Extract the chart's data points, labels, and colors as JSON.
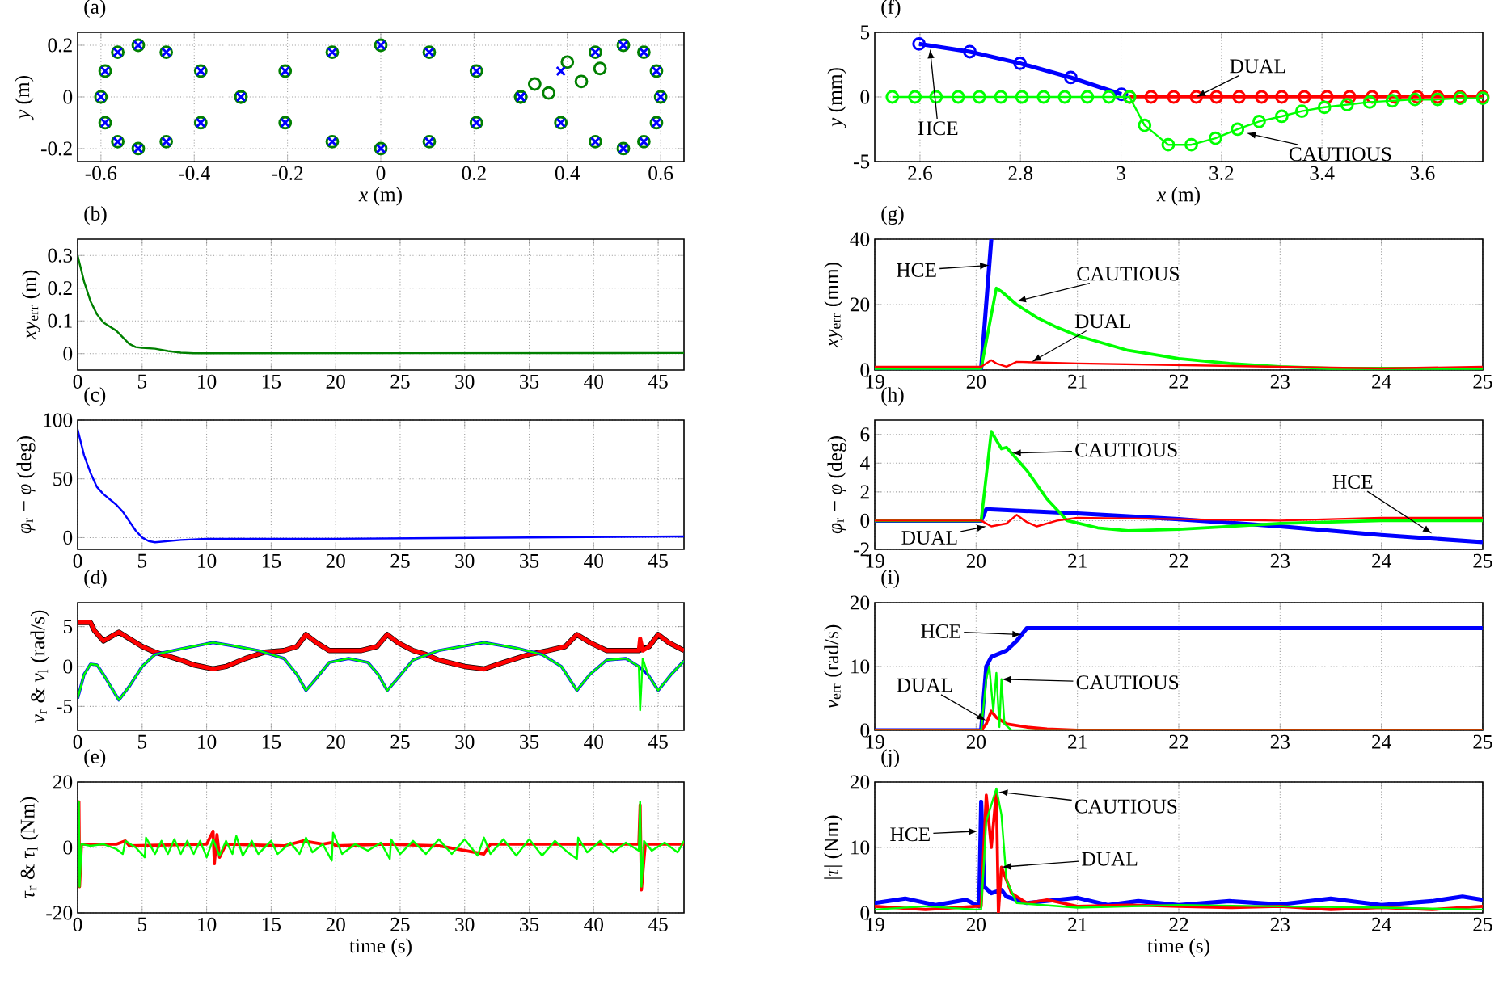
{
  "chart_data": [
    {
      "type": "scatter",
      "title": "(a)",
      "xlabel": "*x* (m)",
      "ylabel": "*y* (m)",
      "xlim": [
        -0.65,
        0.65
      ],
      "ylim": [
        -0.25,
        0.25
      ],
      "xticks": [
        -0.6,
        -0.4,
        -0.2,
        0,
        0.2,
        0.4,
        0.6
      ],
      "yticks": [
        -0.2,
        0,
        0.2
      ],
      "grid": true,
      "series": [
        {
          "color": "#008000",
          "marker": "circle",
          "x": [
            0,
            0.104,
            0.205,
            0.3,
            0.386,
            0.46,
            0.52,
            0.564,
            0.591,
            0.6,
            0.591,
            0.564,
            0.52,
            0.46,
            0.4,
            0.3,
            0.205,
            0.104,
            0,
            -0.104,
            -0.205,
            -0.3,
            -0.386,
            -0.46,
            -0.52,
            -0.564,
            -0.591,
            -0.6,
            -0.591,
            -0.564,
            -0.52,
            -0.46,
            -0.386,
            -0.3,
            -0.205,
            -0.104,
            0.33,
            0.36,
            0.43,
            0.47
          ],
          "values": [
            0.2,
            0.173,
            0.1,
            0,
            -0.1,
            -0.173,
            -0.2,
            -0.173,
            -0.1,
            0,
            0.1,
            0.173,
            0.2,
            0.173,
            0.135,
            0,
            -0.1,
            -0.173,
            -0.2,
            -0.173,
            -0.1,
            0,
            0.1,
            0.173,
            0.2,
            0.173,
            0.1,
            0,
            -0.1,
            -0.173,
            -0.2,
            -0.173,
            -0.1,
            0,
            0.1,
            0.173,
            0.05,
            0.015,
            0.06,
            0.11
          ]
        },
        {
          "color": "#0000ff",
          "marker": "cross",
          "x": [
            0,
            0.104,
            0.205,
            0.3,
            0.386,
            0.46,
            0.52,
            0.564,
            0.591,
            0.6,
            0.591,
            0.564,
            0.52,
            0.46,
            0.386,
            0.3,
            0.205,
            0.104,
            0,
            -0.104,
            -0.205,
            -0.3,
            -0.386,
            -0.46,
            -0.52,
            -0.564,
            -0.591,
            -0.6,
            -0.591,
            -0.564,
            -0.52,
            -0.46,
            -0.386,
            -0.3,
            -0.205,
            -0.104
          ],
          "values": [
            0.2,
            0.173,
            0.1,
            0,
            -0.1,
            -0.173,
            -0.2,
            -0.173,
            -0.1,
            0,
            0.1,
            0.173,
            0.2,
            0.173,
            0.1,
            0,
            -0.1,
            -0.173,
            -0.2,
            -0.173,
            -0.1,
            0,
            0.1,
            0.173,
            0.2,
            0.173,
            0.1,
            0,
            -0.1,
            -0.173,
            -0.2,
            -0.173,
            -0.1,
            0,
            0.1,
            0.173
          ]
        }
      ]
    },
    {
      "type": "line",
      "title": "(b)",
      "ylabel": "*xy*$_{err}$ (m)",
      "xlim": [
        0,
        47
      ],
      "ylim": [
        -0.05,
        0.35
      ],
      "xticks": [
        0,
        5,
        10,
        15,
        20,
        25,
        30,
        35,
        40,
        45
      ],
      "yticks": [
        0,
        0.1,
        0.2,
        0.3
      ],
      "grid": true,
      "series": [
        {
          "color": "#008000",
          "x": [
            0,
            0.5,
            1,
            1.5,
            2,
            3,
            4,
            4.5,
            5,
            6,
            7,
            8,
            9,
            10,
            47
          ],
          "values": [
            0.3,
            0.22,
            0.16,
            0.12,
            0.095,
            0.07,
            0.03,
            0.02,
            0.018,
            0.015,
            0.008,
            0.003,
            0.001,
            0.001,
            0.002
          ]
        }
      ]
    },
    {
      "type": "line",
      "title": "(c)",
      "ylabel": "*φ*$_{r}$ − *φ* (deg)",
      "xlim": [
        0,
        47
      ],
      "ylim": [
        -10,
        100
      ],
      "xticks": [
        0,
        5,
        10,
        15,
        20,
        25,
        30,
        35,
        40,
        45
      ],
      "yticks": [
        0,
        50,
        100
      ],
      "grid": true,
      "series": [
        {
          "color": "#0000ff",
          "x": [
            0,
            0.5,
            1,
            1.5,
            2,
            3,
            3.5,
            4,
            4.5,
            5,
            5.5,
            6,
            7,
            8,
            10,
            20,
            47
          ],
          "values": [
            92,
            70,
            55,
            43,
            37,
            28,
            22,
            14,
            6,
            0,
            -3,
            -4,
            -3,
            -2,
            -1,
            -1,
            1
          ]
        }
      ]
    },
    {
      "type": "line",
      "title": "(d)",
      "ylabel": "*ν*$_{r}$ & *ν*$_{l}$ (rad/s)",
      "xlim": [
        0,
        47
      ],
      "ylim": [
        -8,
        8
      ],
      "xticks": [
        0,
        5,
        10,
        15,
        20,
        25,
        30,
        35,
        40,
        45
      ],
      "yticks": [
        -5,
        0,
        5
      ],
      "grid": true,
      "series": [
        {
          "color": "#000000",
          "x": [
            0,
            1,
            1.3,
            2,
            3.2,
            4,
            5,
            6,
            7,
            8,
            9,
            10.5,
            11.5,
            13,
            14.5,
            16,
            17,
            17.7,
            18.5,
            19.5,
            22,
            23.2,
            24,
            24.8,
            26,
            27,
            28,
            30,
            31.5,
            33,
            35,
            36.5,
            37.8,
            38.7,
            39.7,
            41,
            43.5,
            44.3,
            45,
            45.8,
            47
          ],
          "values": [
            5.5,
            5.5,
            4.5,
            3.2,
            4.3,
            3.5,
            2.5,
            1.8,
            1.3,
            0.8,
            0.2,
            -0.3,
            0,
            1,
            1.8,
            2,
            2.5,
            4,
            3,
            2,
            2,
            2.5,
            4,
            3,
            2,
            1.5,
            0.8,
            0,
            -0.3,
            0.5,
            1.5,
            2,
            2.5,
            4,
            3,
            2,
            2,
            2.5,
            4,
            3,
            2
          ]
        },
        {
          "color": "#ff0000",
          "x": [
            0,
            1,
            1.3,
            2,
            3.2,
            4,
            5,
            6,
            7,
            8,
            9,
            10.5,
            11.5,
            13,
            14.5,
            16,
            17,
            17.7,
            18.5,
            19.5,
            22,
            23.2,
            24,
            24.8,
            26,
            27,
            28,
            30,
            31.5,
            33,
            35,
            36.5,
            37.8,
            38.7,
            39.7,
            41,
            43.5,
            43.6,
            43.8,
            44.3,
            45,
            45.8,
            47
          ],
          "values": [
            5.5,
            5.5,
            4.5,
            3.2,
            4.3,
            3.5,
            2.5,
            1.8,
            1.3,
            0.8,
            0.2,
            -0.3,
            0,
            1,
            1.8,
            2,
            2.5,
            4,
            3,
            2,
            2,
            2.5,
            4,
            3,
            2,
            1.5,
            0.8,
            0,
            -0.3,
            0.5,
            1.5,
            2,
            2.5,
            4,
            3,
            2,
            2,
            3.5,
            2,
            2.5,
            4,
            3,
            2
          ]
        },
        {
          "color": "#0000ff",
          "x": [
            0,
            0.5,
            1,
            1.5,
            2,
            3.2,
            4,
            5,
            6,
            8,
            10.5,
            12,
            14,
            16,
            17,
            17.7,
            18.5,
            19.5,
            21,
            22.5,
            23.3,
            24,
            24.8,
            26,
            28,
            31.5,
            34,
            36,
            37.5,
            38.7,
            39.7,
            41,
            42.5,
            43.5,
            44.2,
            45,
            46,
            47
          ],
          "values": [
            -4,
            -1,
            0.3,
            0.2,
            -1,
            -4.2,
            -2.5,
            0,
            1.5,
            2.2,
            3,
            2.6,
            2,
            1,
            -1,
            -3,
            -1.5,
            0.5,
            1,
            0.5,
            -1,
            -3,
            -1.5,
            0.8,
            2,
            3,
            2.3,
            1.5,
            0,
            -3,
            -1,
            0.8,
            1,
            0,
            -1,
            -3,
            -1,
            0.7
          ]
        },
        {
          "color": "#00ff00",
          "x": [
            0,
            0.5,
            1,
            1.5,
            2,
            3.2,
            4,
            5,
            6,
            8,
            10.5,
            12,
            14,
            16,
            17,
            17.7,
            18.5,
            19.5,
            21,
            22.5,
            23.3,
            24,
            24.8,
            26,
            28,
            31.5,
            34,
            36,
            37.5,
            38.7,
            39.7,
            41,
            42.5,
            43.5,
            43.6,
            43.8,
            44.2,
            45,
            46,
            47
          ],
          "values": [
            -4,
            -1,
            0.3,
            0.2,
            -1,
            -4.2,
            -2.5,
            0,
            1.5,
            2.2,
            3,
            2.6,
            2,
            1,
            -1,
            -3,
            -1.5,
            0.5,
            1,
            0.5,
            -1,
            -3,
            -1.5,
            0.8,
            2,
            3,
            2.3,
            1.5,
            0,
            -3,
            -1,
            0.8,
            1,
            0,
            -5.5,
            1,
            -1,
            -3,
            -1,
            0.7
          ]
        }
      ]
    },
    {
      "type": "line",
      "title": "(e)",
      "xlabel": "time (s)",
      "ylabel": "*τ*$_{r}$ & *τ*$_{l}$ (Nm)",
      "xlim": [
        0,
        47
      ],
      "ylim": [
        -20,
        20
      ],
      "xticks": [
        0,
        5,
        10,
        15,
        20,
        25,
        30,
        35,
        40,
        45
      ],
      "yticks": [
        -20,
        0,
        20
      ],
      "grid": true,
      "series": [
        {
          "color": "#ff0000",
          "x": [
            0,
            0.1,
            0.15,
            0.3,
            3,
            3.7,
            4,
            10,
            10.5,
            10.6,
            10.8,
            11,
            11.5,
            16,
            17.5,
            19,
            19.7,
            20,
            24,
            28,
            31.5,
            32,
            38,
            43.5,
            43.6,
            43.7,
            44,
            47
          ],
          "values": [
            1,
            14,
            -12,
            1,
            1,
            2,
            0.5,
            1,
            5,
            -5,
            4,
            -3,
            1,
            0.5,
            2,
            1,
            1.5,
            0.5,
            1,
            0.5,
            -2,
            1,
            1,
            1,
            13,
            -13,
            1,
            1
          ]
        },
        {
          "color": "#00ff00",
          "x": [
            0,
            0.1,
            0.15,
            0.3,
            1,
            2,
            3,
            3.5,
            3.7,
            4.5,
            5.2,
            5.3,
            6,
            6.5,
            7,
            7.5,
            8,
            8.5,
            9,
            9.5,
            10,
            10.5,
            11,
            11.5,
            12,
            12.3,
            12.8,
            13.5,
            14,
            15,
            15.5,
            16.5,
            17.2,
            17.7,
            18.2,
            19,
            19.7,
            19.8,
            20.5,
            21.5,
            22.5,
            23.5,
            24.2,
            24.3,
            25,
            26,
            27,
            28,
            29,
            30,
            31,
            31.5,
            32,
            33,
            34,
            35,
            36,
            37,
            38,
            38.7,
            38.8,
            39.5,
            40.5,
            41.5,
            42.5,
            43.5,
            43.6,
            43.7,
            43.9,
            44.5,
            45.5,
            46.5,
            47
          ],
          "values": [
            0,
            14,
            -12,
            1,
            0.5,
            1,
            -0.5,
            -2,
            2,
            0,
            -3,
            3,
            -2,
            2,
            -2,
            2.5,
            -2,
            2,
            -2,
            2,
            -3,
            2.5,
            -2.5,
            2,
            -2,
            3.5,
            -2.5,
            2,
            -2,
            2,
            -2,
            1.5,
            -2,
            3,
            -1.5,
            1,
            -4,
            4.5,
            -2,
            1,
            -1,
            1.5,
            -3.5,
            2.5,
            -2,
            2,
            -2,
            2.5,
            -2,
            2.5,
            -2.5,
            3,
            -2,
            2.5,
            -2.5,
            2.5,
            -2.5,
            2,
            -1.5,
            -3.5,
            3,
            -1.5,
            2,
            -1.5,
            1.5,
            -1,
            14,
            -12,
            2,
            -1,
            1.5,
            -1.5,
            2
          ]
        }
      ]
    },
    {
      "type": "line",
      "title": "(f)",
      "xlabel": "*x* (m)",
      "ylabel": "*y* (mm)",
      "xlim": [
        2.51,
        3.72
      ],
      "ylim": [
        -5,
        5
      ],
      "xticks": [
        2.6,
        2.8,
        3,
        3.2,
        3.4,
        3.6
      ],
      "yticks": [
        -5,
        0,
        5
      ],
      "grid": true,
      "marker": "circle",
      "series": [
        {
          "color": "#0000ff",
          "x": [
            2.598,
            2.699,
            2.799,
            2.9,
            3.001
          ],
          "values": [
            4.1,
            3.5,
            2.6,
            1.5,
            0.2
          ]
        },
        {
          "color": "#ff0000",
          "x": [
            3.017,
            3.06,
            3.105,
            3.15,
            3.19,
            3.235,
            3.28,
            3.32,
            3.365,
            3.41,
            3.455,
            3.5,
            3.545,
            3.59,
            3.63,
            3.675,
            3.72
          ],
          "values": [
            0,
            0,
            0,
            0,
            0,
            0,
            0,
            0,
            0,
            0,
            0,
            0,
            0,
            0,
            0,
            0,
            0
          ]
        },
        {
          "color": "#00ff00",
          "x": [
            2.545,
            2.59,
            2.632,
            2.676,
            2.718,
            2.761,
            2.803,
            2.846,
            2.888,
            2.933,
            2.976,
            3.017,
            3.047,
            3.094,
            3.14,
            3.188,
            3.232,
            3.275,
            3.32,
            3.36,
            3.405,
            3.45,
            3.495,
            3.54,
            3.585,
            3.63,
            3.675,
            3.72
          ],
          "values": [
            0,
            0,
            0,
            0,
            0,
            0,
            0,
            0,
            0,
            0,
            0,
            0,
            -2.2,
            -3.7,
            -3.7,
            -3.2,
            -2.5,
            -1.9,
            -1.5,
            -1.1,
            -0.8,
            -0.6,
            -0.4,
            -0.3,
            -0.2,
            -0.2,
            -0.1,
            -0.1
          ]
        }
      ],
      "annotations": [
        {
          "text": "DUAL",
          "x": 3.15,
          "y": 0
        },
        {
          "text": "HCE",
          "x": 2.62,
          "y": 3.7
        },
        {
          "text": "CAUTIOUS",
          "x": 3.25,
          "y": -2.8
        }
      ]
    },
    {
      "type": "line",
      "title": "(g)",
      "ylabel": "*xy*$_{err}$ (mm)",
      "xlim": [
        19,
        25
      ],
      "ylim": [
        0,
        40
      ],
      "xticks": [
        19,
        20,
        21,
        22,
        23,
        24,
        25
      ],
      "yticks": [
        0,
        20,
        40
      ],
      "grid": true,
      "series": [
        {
          "color": "#0000ff",
          "x": [
            19,
            20.05,
            20.15
          ],
          "values": [
            0.5,
            0.5,
            40
          ]
        },
        {
          "color": "#00ff00",
          "x": [
            19,
            20.05,
            20.2,
            20.25,
            20.4,
            20.6,
            20.8,
            21,
            21.5,
            22,
            22.5,
            23,
            23.5,
            25
          ],
          "values": [
            0.5,
            0.5,
            25,
            24,
            20,
            16,
            13,
            10.5,
            6,
            3.5,
            2,
            1,
            0.5,
            0.5
          ]
        },
        {
          "color": "#ff0000",
          "x": [
            19,
            20.05,
            20.15,
            20.2,
            20.3,
            20.4,
            21,
            22,
            23,
            24,
            25
          ],
          "values": [
            1,
            1,
            3,
            2,
            1,
            2.5,
            2,
            1.5,
            1,
            0.5,
            1
          ]
        }
      ],
      "annotations": [
        {
          "text": "HCE",
          "x": 20.13,
          "y": 32
        },
        {
          "text": "CAUTIOUS",
          "x": 20.4,
          "y": 21
        },
        {
          "text": "DUAL",
          "x": 20.55,
          "y": 2.5
        }
      ]
    },
    {
      "type": "line",
      "title": "(h)",
      "ylabel": "*φ*$_{r}$ − *φ* (deg)",
      "xlim": [
        19,
        25
      ],
      "ylim": [
        -2,
        7
      ],
      "xticks": [
        19,
        20,
        21,
        22,
        23,
        24,
        25
      ],
      "yticks": [
        -2,
        0,
        2,
        4,
        6
      ],
      "grid": true,
      "series": [
        {
          "color": "#0000ff",
          "x": [
            19,
            20.05,
            20.1,
            21,
            22,
            23,
            24,
            25
          ],
          "values": [
            0,
            0,
            0.8,
            0.5,
            0.1,
            -0.4,
            -1,
            -1.5
          ]
        },
        {
          "color": "#00ff00",
          "x": [
            19,
            20.05,
            20.15,
            20.25,
            20.3,
            20.5,
            20.7,
            20.9,
            21.2,
            21.5,
            22,
            22.5,
            23,
            24,
            25
          ],
          "values": [
            0,
            0,
            6.2,
            5,
            5.1,
            3.5,
            1.5,
            0,
            -0.5,
            -0.7,
            -0.6,
            -0.4,
            -0.2,
            0,
            0
          ]
        },
        {
          "color": "#ff0000",
          "x": [
            19,
            20.05,
            20.15,
            20.3,
            20.4,
            20.5,
            20.6,
            20.8,
            21,
            22,
            23,
            24,
            25
          ],
          "values": [
            0,
            0,
            -0.4,
            -0.2,
            0.4,
            -0.1,
            -0.4,
            0,
            0.2,
            0.1,
            0,
            0.2,
            0.2
          ]
        }
      ],
      "annotations": [
        {
          "text": "CAUTIOUS",
          "x": 20.35,
          "y": 4.7
        },
        {
          "text": "HCE",
          "x": 24.5,
          "y": -0.9
        },
        {
          "text": "DUAL",
          "x": 20.1,
          "y": -0.4
        }
      ]
    },
    {
      "type": "line",
      "title": "(i)",
      "ylabel": "*ν*$_{err}$ (rad/s)",
      "xlim": [
        19,
        25
      ],
      "ylim": [
        0,
        20
      ],
      "xticks": [
        19,
        20,
        21,
        22,
        23,
        24,
        25
      ],
      "yticks": [
        0,
        10,
        20
      ],
      "grid": true,
      "series": [
        {
          "color": "#0000ff",
          "x": [
            19,
            20.05,
            20.1,
            20.15,
            20.3,
            20.4,
            20.5,
            25
          ],
          "values": [
            0,
            0,
            10,
            11.5,
            12.5,
            14,
            16,
            16
          ]
        },
        {
          "color": "#ff0000",
          "x": [
            19,
            20.05,
            20.1,
            20.15,
            20.2,
            20.3,
            20.5,
            20.7,
            21,
            25
          ],
          "values": [
            0,
            0,
            1,
            3,
            2,
            1,
            0.5,
            0.2,
            0,
            0
          ]
        },
        {
          "color": "#00ff00",
          "x": [
            19,
            20.05,
            20.1,
            20.13,
            20.17,
            20.2,
            20.23,
            20.25,
            20.28,
            20.35,
            25
          ],
          "values": [
            0,
            0,
            8,
            10,
            3,
            9,
            0.5,
            8,
            1,
            0,
            0
          ]
        }
      ],
      "annotations": [
        {
          "text": "HCE",
          "x": 20.45,
          "y": 15
        },
        {
          "text": "CAUTIOUS",
          "x": 20.25,
          "y": 8
        },
        {
          "text": "DUAL",
          "x": 20.1,
          "y": 1.5
        }
      ]
    },
    {
      "type": "line",
      "title": "(j)",
      "xlabel": "time (s)",
      "ylabel": "|*τ*| (Nm)",
      "xlim": [
        19,
        25
      ],
      "ylim": [
        0,
        20
      ],
      "xticks": [
        19,
        20,
        21,
        22,
        23,
        24,
        25
      ],
      "yticks": [
        0,
        10,
        20
      ],
      "grid": true,
      "series": [
        {
          "color": "#0000ff",
          "x": [
            19,
            19.3,
            19.6,
            19.9,
            20.03,
            20.05,
            20.08,
            20.15,
            20.25,
            20.3,
            20.5,
            21,
            21.3,
            21.6,
            22,
            22.5,
            23,
            23.5,
            24,
            24.5,
            24.8,
            25
          ],
          "values": [
            1.5,
            2.2,
            1.2,
            2,
            1,
            17,
            4,
            3,
            3.5,
            2.5,
            1.5,
            2.3,
            1.2,
            1.8,
            1.2,
            1.8,
            1.3,
            2.2,
            1.2,
            1.8,
            2.5,
            2
          ]
        },
        {
          "color": "#ff0000",
          "x": [
            19,
            19.5,
            20,
            20.05,
            20.1,
            20.15,
            20.2,
            20.22,
            20.25,
            20.35,
            20.5,
            20.7,
            21,
            21.5,
            22,
            22.5,
            23,
            23.5,
            24,
            24.5,
            25
          ],
          "values": [
            1,
            0.5,
            1,
            1,
            18,
            10,
            18.5,
            0,
            7,
            3,
            1.5,
            2,
            1,
            1.2,
            1,
            0.8,
            1,
            0.5,
            0.8,
            0.5,
            1
          ]
        },
        {
          "color": "#00ff00",
          "x": [
            19,
            19.5,
            20,
            20.05,
            20.1,
            20.2,
            20.25,
            20.3,
            20.4,
            21,
            22,
            23,
            24,
            25
          ],
          "values": [
            0.5,
            1,
            0.5,
            0.5,
            14,
            19,
            15,
            5,
            1.5,
            0.8,
            1.2,
            1,
            0.8,
            0.5
          ]
        }
      ],
      "annotations": [
        {
          "text": "HCE",
          "x": 20.02,
          "y": 12.5
        },
        {
          "text": "CAUTIOUS",
          "x": 20.22,
          "y": 18.5
        },
        {
          "text": "DUAL",
          "x": 20.25,
          "y": 7
        }
      ]
    }
  ]
}
